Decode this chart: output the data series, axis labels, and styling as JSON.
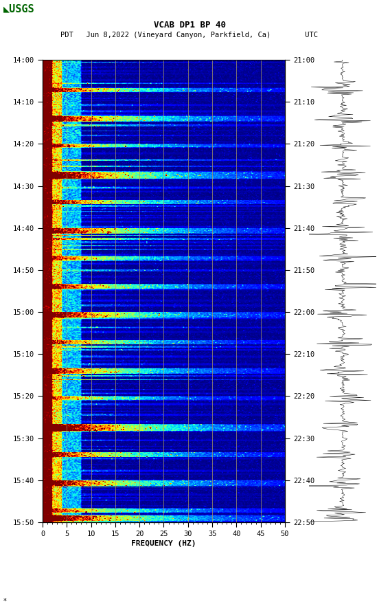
{
  "title_line1": "VCAB DP1 BP 40",
  "title_line2": "PDT   Jun 8,2022 (Vineyard Canyon, Parkfield, Ca)        UTC",
  "xlabel": "FREQUENCY (HZ)",
  "freq_min": 0,
  "freq_max": 50,
  "pdt_ticks": [
    "14:00",
    "14:10",
    "14:20",
    "14:30",
    "14:40",
    "14:50",
    "15:00",
    "15:10",
    "15:20",
    "15:30",
    "15:40",
    "15:50"
  ],
  "utc_ticks": [
    "21:00",
    "21:10",
    "21:20",
    "21:30",
    "21:40",
    "21:50",
    "22:00",
    "22:10",
    "22:20",
    "22:30",
    "22:40",
    "22:50"
  ],
  "vertical_lines_freq": [
    5,
    10,
    15,
    20,
    25,
    30,
    35,
    40,
    45
  ],
  "bg_color": "#ffffff",
  "colormap": "jet",
  "fig_width": 5.52,
  "fig_height": 8.92,
  "dpi": 100,
  "n_freq": 250,
  "n_time": 660,
  "n_minutes": 110,
  "usgs_green": "#006400"
}
